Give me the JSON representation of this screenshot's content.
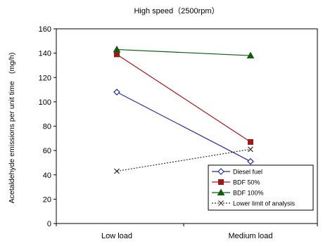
{
  "chart_data": {
    "type": "line",
    "title": "High speed（2500rpm）",
    "ylabel": "Acetaldehyde emissions per unit time　(mg/h)",
    "xlabel": "",
    "categories": [
      "Low load",
      "Medium load"
    ],
    "ylim": [
      0,
      160
    ],
    "yticks": [
      0,
      20,
      40,
      60,
      80,
      100,
      120,
      140,
      160
    ],
    "grid": false,
    "legend_position": "bottom-right",
    "series": [
      {
        "name": "Diesel fuel",
        "values": [
          108,
          51
        ],
        "color": "#2b2b9a",
        "marker": "diamond-open",
        "dash": "solid"
      },
      {
        "name": "BDF 50%",
        "values": [
          139,
          67
        ],
        "color": "#a01818",
        "marker": "square-filled",
        "dash": "solid"
      },
      {
        "name": "BDF 100%",
        "values": [
          143,
          138
        ],
        "color": "#0e5c0e",
        "marker": "triangle-filled",
        "dash": "solid"
      },
      {
        "name": "Lower limit of analysis",
        "values": [
          43,
          61
        ],
        "color": "#333333",
        "marker": "x",
        "dash": "dashed"
      }
    ]
  }
}
